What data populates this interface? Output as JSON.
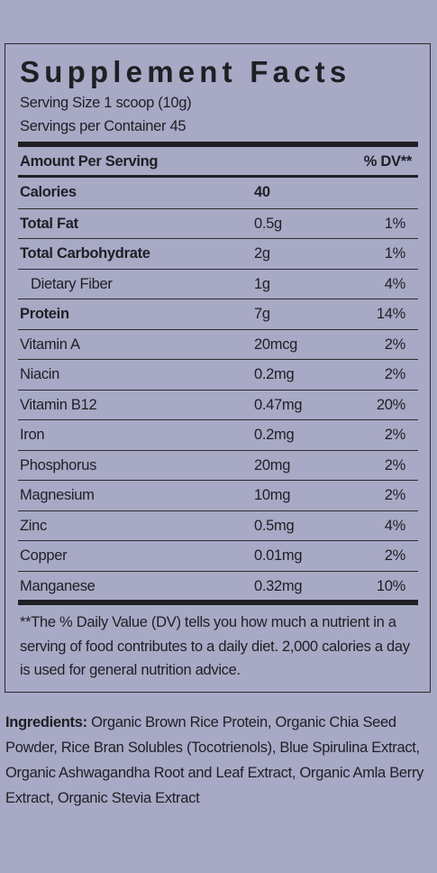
{
  "panel": {
    "title": "Supplement Facts",
    "serving_size": "Serving Size 1 scoop (10g)",
    "servings_per_container": "Servings per Container 45",
    "header": {
      "amount": "Amount Per Serving",
      "dv": "% DV**"
    },
    "rows": [
      {
        "name": "Calories",
        "amount": "40"
      },
      {
        "name": "Total Fat",
        "amount": "0.5g",
        "dv": "1%"
      },
      {
        "name": "Total Carbohydrate",
        "amount": "2g",
        "dv": "1%"
      },
      {
        "name": "Dietary Fiber",
        "amount": "1g",
        "dv": "4%"
      },
      {
        "name": "Protein",
        "amount": "7g",
        "dv": "14%"
      },
      {
        "name": "Vitamin A",
        "amount": "20mcg",
        "dv": "2%"
      },
      {
        "name": "Niacin",
        "amount": "0.2mg",
        "dv": "2%"
      },
      {
        "name": "Vitamin B12",
        "amount": "0.47mg",
        "dv": "20%"
      },
      {
        "name": "Iron",
        "amount": "0.2mg",
        "dv": "2%"
      },
      {
        "name": "Phosphorus",
        "amount": "20mg",
        "dv": "2%"
      },
      {
        "name": "Magnesium",
        "amount": "10mg",
        "dv": "2%"
      },
      {
        "name": "Zinc",
        "amount": "0.5mg",
        "dv": "4%"
      },
      {
        "name": "Copper",
        "amount": "0.01mg",
        "dv": "2%"
      },
      {
        "name": "Manganese",
        "amount": "0.32mg",
        "dv": "10%"
      }
    ],
    "footnote": "**The % Daily Value (DV) tells you how much a nutrient in a serving of food contributes to a daily diet. 2,000 calories a day is used for general nutrition advice."
  },
  "ingredients": {
    "label": "Ingredients:",
    "text": "Organic Brown Rice Protein, Organic Chia Seed Powder, Rice Bran Solubles (Tocotrienols), Blue Spirulina Extract, Organic Ashwagandha Root and Leaf Extract, Organic Amla Berry Extract, Organic Stevia Extract"
  }
}
